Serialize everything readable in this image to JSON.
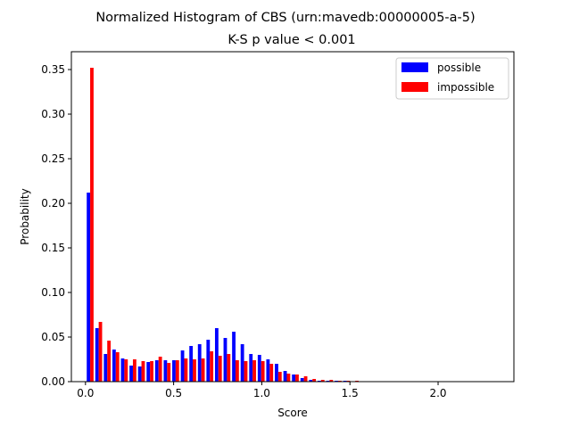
{
  "chart_data": {
    "type": "bar",
    "title": "Normalized Histogram of CBS (urn:mavedb:00000005-a-5)",
    "subtitle": "K-S p value < 0.001",
    "xlabel": "Score",
    "ylabel": "Probability",
    "xlim": [
      -0.08,
      2.43
    ],
    "ylim": [
      0,
      0.37
    ],
    "xticks": [
      0.0,
      0.5,
      1.0,
      1.5,
      2.0
    ],
    "xtick_labels": [
      "0.0",
      "0.5",
      "1.0",
      "1.5",
      "2.0"
    ],
    "yticks": [
      0.0,
      0.05,
      0.1,
      0.15,
      0.2,
      0.25,
      0.3,
      0.35
    ],
    "ytick_labels": [
      "0.00",
      "0.05",
      "0.10",
      "0.15",
      "0.20",
      "0.25",
      "0.30",
      "0.35"
    ],
    "grid": false,
    "legend_position": "top-right",
    "bin_width": 0.0485,
    "x": [
      0.0265,
      0.075,
      0.1235,
      0.172,
      0.2205,
      0.269,
      0.3175,
      0.366,
      0.4145,
      0.463,
      0.5115,
      0.56,
      0.6085,
      0.657,
      0.7055,
      0.754,
      0.8025,
      0.851,
      0.8995,
      0.948,
      0.9965,
      1.045,
      1.0935,
      1.142,
      1.1905,
      1.239,
      1.2875,
      1.336,
      1.3845,
      1.433,
      1.4815,
      1.53,
      1.5785,
      1.627,
      1.6755,
      1.724,
      1.7725,
      1.821,
      1.8695,
      1.918,
      1.9665,
      2.015,
      2.0635,
      2.112,
      2.1605,
      2.209,
      2.2575,
      2.306
    ],
    "series": [
      {
        "name": "possible",
        "color": "#0000ff",
        "values": [
          0.212,
          0.06,
          0.031,
          0.036,
          0.026,
          0.018,
          0.017,
          0.022,
          0.024,
          0.024,
          0.024,
          0.035,
          0.04,
          0.042,
          0.047,
          0.06,
          0.049,
          0.056,
          0.042,
          0.031,
          0.03,
          0.025,
          0.02,
          0.012,
          0.008,
          0.004,
          0.002,
          0.001,
          0.001,
          0.001,
          0.001,
          0.0,
          0.0,
          0.0,
          0.0,
          0.0,
          0.0,
          0.0,
          0.0,
          0.0,
          0.0,
          0.0,
          0.0,
          0.0,
          0.0,
          0.0,
          0.0,
          0.0
        ]
      },
      {
        "name": "impossible",
        "color": "#ff0000",
        "values": [
          0.352,
          0.067,
          0.046,
          0.033,
          0.025,
          0.025,
          0.023,
          0.023,
          0.028,
          0.021,
          0.024,
          0.026,
          0.025,
          0.026,
          0.034,
          0.029,
          0.031,
          0.024,
          0.023,
          0.024,
          0.023,
          0.02,
          0.011,
          0.009,
          0.008,
          0.006,
          0.003,
          0.002,
          0.002,
          0.001,
          0.001,
          0.001,
          0.0,
          0.0,
          0.0,
          0.0,
          0.0,
          0.0,
          0.0,
          0.0,
          0.0,
          0.0,
          0.0,
          0.0,
          0.0,
          0.0,
          0.0,
          0.0
        ]
      }
    ]
  }
}
